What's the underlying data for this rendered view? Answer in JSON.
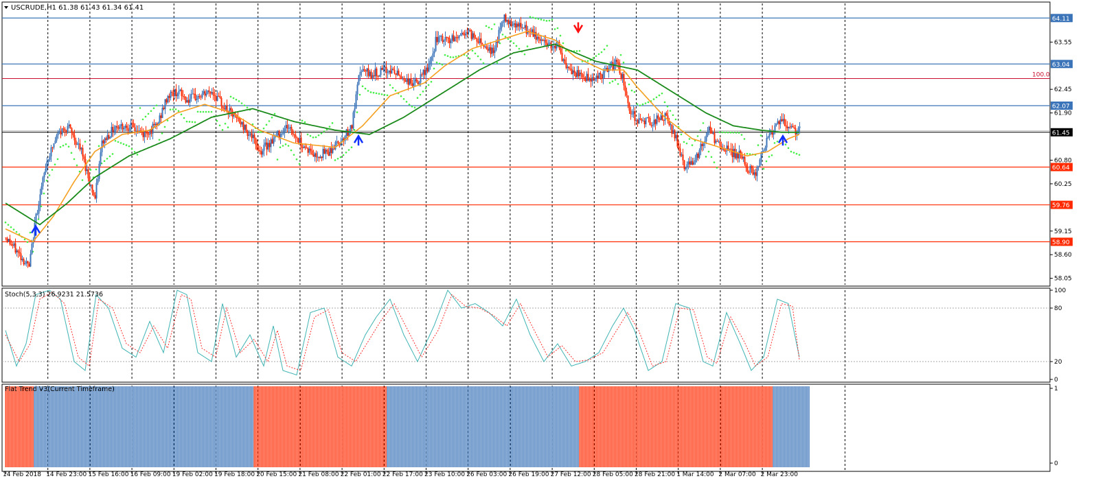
{
  "header": {
    "symbol_info": "USCRUDE,H1  61.38 61.43 61.34 61.41"
  },
  "price_axis": {
    "ticks": [
      "63.55",
      "62.45",
      "61.90",
      "60.80",
      "60.25",
      "59.15",
      "58.60",
      "58.05"
    ],
    "current_price": "61.45"
  },
  "horizontal_levels": [
    {
      "price": 64.11,
      "label": "64.11",
      "color": "#3b74b8"
    },
    {
      "price": 63.04,
      "label": "63.04",
      "color": "#3b74b8"
    },
    {
      "price": 62.07,
      "label": "62.07",
      "color": "#3b74b8"
    },
    {
      "price": 60.64,
      "label": "60.64",
      "color": "#ff2a00"
    },
    {
      "price": 59.76,
      "label": "59.76",
      "color": "#ff2a00"
    },
    {
      "price": 58.9,
      "label": "58.90",
      "color": "#ff2a00"
    }
  ],
  "fib_level": {
    "price": 62.7,
    "label": "100.0",
    "color": "#c8102e"
  },
  "stochastic": {
    "title": "Stoch(5,3,3) 26.9231 21.5736",
    "ticks": [
      "100",
      "80",
      "20",
      "0"
    ]
  },
  "flat_trend": {
    "title": "Flat Trend V3(Current Timeframe)",
    "ticks": [
      "1",
      "0"
    ]
  },
  "time_axis": {
    "labels": [
      "14 Feb 2018",
      "14 Feb 23:00",
      "15 Feb 16:00",
      "16 Feb 09:00",
      "19 Feb 02:00",
      "19 Feb 18:00",
      "20 Feb 15:00",
      "21 Feb 08:00",
      "22 Feb 01:00",
      "22 Feb 17:00",
      "23 Feb 10:00",
      "26 Feb 03:00",
      "26 Feb 19:00",
      "27 Feb 12:00",
      "28 Feb 05:00",
      "28 Feb 21:00",
      "1 Mar 14:00",
      "2 Mar 07:00",
      "2 Mar 23:00"
    ]
  },
  "colors": {
    "bull": "#3b74b8",
    "bear": "#ff2a00",
    "ma_fast": "#f5a020",
    "ma_slow": "#1a8a1a",
    "psar": "#44ee44",
    "stoch_main": "#3fb3b3",
    "stoch_signal": "#ff3030",
    "arrow_up": "#1030ff",
    "arrow_down": "#ff1010"
  },
  "chart_data": {
    "type": "candlestick",
    "symbol": "USCRUDE",
    "timeframe": "H1",
    "ylim": [
      57.9,
      64.45
    ],
    "anchors": [
      [
        0,
        59.0
      ],
      [
        10,
        58.6
      ],
      [
        17,
        58.3
      ],
      [
        22,
        59.5
      ],
      [
        30,
        60.8
      ],
      [
        38,
        61.4
      ],
      [
        45,
        61.6
      ],
      [
        55,
        61.0
      ],
      [
        62,
        60.2
      ],
      [
        65,
        59.9
      ],
      [
        70,
        61.2
      ],
      [
        80,
        61.6
      ],
      [
        90,
        61.6
      ],
      [
        100,
        61.4
      ],
      [
        110,
        61.6
      ],
      [
        118,
        62.3
      ],
      [
        125,
        62.4
      ],
      [
        132,
        62.2
      ],
      [
        142,
        62.3
      ],
      [
        150,
        62.4
      ],
      [
        160,
        62.0
      ],
      [
        170,
        61.7
      ],
      [
        178,
        61.4
      ],
      [
        185,
        61.0
      ],
      [
        195,
        61.3
      ],
      [
        205,
        61.6
      ],
      [
        215,
        61.2
      ],
      [
        225,
        60.9
      ],
      [
        235,
        61.0
      ],
      [
        245,
        61.3
      ],
      [
        252,
        61.6
      ],
      [
        258,
        62.9
      ],
      [
        265,
        62.8
      ],
      [
        280,
        62.9
      ],
      [
        295,
        62.6
      ],
      [
        300,
        62.6
      ],
      [
        310,
        63.1
      ],
      [
        313,
        63.6
      ],
      [
        325,
        63.6
      ],
      [
        335,
        63.8
      ],
      [
        345,
        63.6
      ],
      [
        355,
        63.3
      ],
      [
        362,
        64.1
      ],
      [
        370,
        64.0
      ],
      [
        385,
        63.7
      ],
      [
        395,
        63.5
      ],
      [
        402,
        63.5
      ],
      [
        408,
        62.9
      ],
      [
        415,
        62.8
      ],
      [
        425,
        62.7
      ],
      [
        435,
        62.8
      ],
      [
        445,
        63.1
      ],
      [
        450,
        62.6
      ],
      [
        455,
        61.9
      ],
      [
        462,
        61.7
      ],
      [
        470,
        61.7
      ],
      [
        480,
        61.8
      ],
      [
        488,
        61.3
      ],
      [
        495,
        60.6
      ],
      [
        505,
        61.0
      ],
      [
        512,
        61.5
      ],
      [
        520,
        61.1
      ],
      [
        535,
        60.9
      ],
      [
        540,
        60.6
      ],
      [
        546,
        60.5
      ],
      [
        555,
        61.4
      ],
      [
        565,
        61.7
      ],
      [
        572,
        61.5
      ],
      [
        578,
        61.5
      ]
    ],
    "ma_fast_anchors": [
      [
        0,
        59.2
      ],
      [
        20,
        58.9
      ],
      [
        35,
        59.5
      ],
      [
        50,
        60.3
      ],
      [
        65,
        61.0
      ],
      [
        85,
        61.4
      ],
      [
        105,
        61.5
      ],
      [
        125,
        61.9
      ],
      [
        145,
        62.1
      ],
      [
        165,
        61.9
      ],
      [
        185,
        61.5
      ],
      [
        210,
        61.2
      ],
      [
        240,
        61.1
      ],
      [
        260,
        61.6
      ],
      [
        280,
        62.3
      ],
      [
        305,
        62.6
      ],
      [
        320,
        63.0
      ],
      [
        340,
        63.4
      ],
      [
        360,
        63.6
      ],
      [
        380,
        63.8
      ],
      [
        400,
        63.6
      ],
      [
        415,
        63.2
      ],
      [
        435,
        62.9
      ],
      [
        450,
        62.9
      ],
      [
        460,
        62.5
      ],
      [
        480,
        61.8
      ],
      [
        500,
        61.3
      ],
      [
        520,
        61.1
      ],
      [
        540,
        60.9
      ],
      [
        555,
        61.0
      ],
      [
        570,
        61.3
      ],
      [
        578,
        61.4
      ]
    ],
    "ma_slow_anchors": [
      [
        0,
        59.8
      ],
      [
        25,
        59.3
      ],
      [
        45,
        59.8
      ],
      [
        65,
        60.4
      ],
      [
        90,
        60.9
      ],
      [
        120,
        61.3
      ],
      [
        150,
        61.8
      ],
      [
        180,
        62.0
      ],
      [
        210,
        61.7
      ],
      [
        240,
        61.5
      ],
      [
        265,
        61.4
      ],
      [
        290,
        61.8
      ],
      [
        320,
        62.4
      ],
      [
        345,
        62.9
      ],
      [
        370,
        63.3
      ],
      [
        400,
        63.5
      ],
      [
        430,
        63.1
      ],
      [
        460,
        62.9
      ],
      [
        490,
        62.3
      ],
      [
        510,
        61.9
      ],
      [
        530,
        61.6
      ],
      [
        550,
        61.5
      ],
      [
        565,
        61.45
      ],
      [
        578,
        61.45
      ]
    ],
    "buy_arrows": [
      {
        "bar": 22,
        "price": 59.2
      },
      {
        "bar": 257,
        "price": 61.3
      },
      {
        "bar": 566,
        "price": 61.3
      }
    ],
    "sell_arrows": [
      {
        "bar": 417,
        "price": 63.85
      }
    ],
    "stochastic": {
      "k": 26.9231,
      "d": 21.5736,
      "ylim": [
        0,
        100
      ],
      "levels": [
        20,
        80
      ],
      "k_anchors": [
        [
          0,
          55
        ],
        [
          8,
          15
        ],
        [
          15,
          40
        ],
        [
          22,
          95
        ],
        [
          32,
          100
        ],
        [
          40,
          90
        ],
        [
          50,
          20
        ],
        [
          58,
          10
        ],
        [
          66,
          95
        ],
        [
          75,
          80
        ],
        [
          85,
          35
        ],
        [
          95,
          25
        ],
        [
          105,
          65
        ],
        [
          115,
          30
        ],
        [
          125,
          100
        ],
        [
          132,
          95
        ],
        [
          140,
          30
        ],
        [
          150,
          20
        ],
        [
          158,
          85
        ],
        [
          168,
          25
        ],
        [
          178,
          50
        ],
        [
          188,
          15
        ],
        [
          195,
          60
        ],
        [
          202,
          10
        ],
        [
          212,
          5
        ],
        [
          222,
          75
        ],
        [
          232,
          80
        ],
        [
          242,
          25
        ],
        [
          252,
          15
        ],
        [
          262,
          50
        ],
        [
          270,
          70
        ],
        [
          280,
          90
        ],
        [
          290,
          50
        ],
        [
          300,
          20
        ],
        [
          312,
          60
        ],
        [
          322,
          100
        ],
        [
          332,
          80
        ],
        [
          342,
          85
        ],
        [
          352,
          75
        ],
        [
          362,
          60
        ],
        [
          372,
          90
        ],
        [
          382,
          50
        ],
        [
          392,
          20
        ],
        [
          402,
          40
        ],
        [
          412,
          15
        ],
        [
          422,
          20
        ],
        [
          432,
          30
        ],
        [
          442,
          60
        ],
        [
          450,
          80
        ],
        [
          458,
          55
        ],
        [
          468,
          10
        ],
        [
          478,
          20
        ],
        [
          488,
          85
        ],
        [
          498,
          80
        ],
        [
          508,
          20
        ],
        [
          515,
          15
        ],
        [
          525,
          75
        ],
        [
          535,
          40
        ],
        [
          543,
          10
        ],
        [
          552,
          25
        ],
        [
          562,
          90
        ],
        [
          570,
          85
        ],
        [
          578,
          25
        ]
      ],
      "d_anchors": [
        [
          0,
          50
        ],
        [
          10,
          20
        ],
        [
          18,
          40
        ],
        [
          25,
          90
        ],
        [
          34,
          98
        ],
        [
          43,
          85
        ],
        [
          53,
          25
        ],
        [
          61,
          15
        ],
        [
          68,
          90
        ],
        [
          78,
          80
        ],
        [
          88,
          40
        ],
        [
          98,
          30
        ],
        [
          108,
          60
        ],
        [
          118,
          35
        ],
        [
          128,
          95
        ],
        [
          135,
          90
        ],
        [
          143,
          35
        ],
        [
          153,
          25
        ],
        [
          161,
          80
        ],
        [
          171,
          30
        ],
        [
          181,
          45
        ],
        [
          191,
          20
        ],
        [
          198,
          55
        ],
        [
          205,
          15
        ],
        [
          215,
          10
        ],
        [
          225,
          70
        ],
        [
          235,
          78
        ],
        [
          245,
          30
        ],
        [
          255,
          20
        ],
        [
          265,
          45
        ],
        [
          273,
          65
        ],
        [
          283,
          85
        ],
        [
          293,
          55
        ],
        [
          303,
          25
        ],
        [
          315,
          55
        ],
        [
          325,
          95
        ],
        [
          335,
          82
        ],
        [
          345,
          80
        ],
        [
          355,
          72
        ],
        [
          365,
          60
        ],
        [
          375,
          85
        ],
        [
          385,
          55
        ],
        [
          395,
          25
        ],
        [
          405,
          38
        ],
        [
          415,
          20
        ],
        [
          425,
          22
        ],
        [
          435,
          30
        ],
        [
          445,
          55
        ],
        [
          453,
          75
        ],
        [
          461,
          55
        ],
        [
          471,
          15
        ],
        [
          481,
          20
        ],
        [
          491,
          80
        ],
        [
          501,
          78
        ],
        [
          511,
          25
        ],
        [
          518,
          18
        ],
        [
          528,
          70
        ],
        [
          538,
          42
        ],
        [
          546,
          15
        ],
        [
          555,
          25
        ],
        [
          565,
          85
        ],
        [
          573,
          82
        ],
        [
          578,
          22
        ]
      ]
    },
    "flat_trend_segments": [
      {
        "start": 0,
        "end": 20,
        "trend": "down"
      },
      {
        "start": 21,
        "end": 180,
        "trend": "up"
      },
      {
        "start": 181,
        "end": 277,
        "trend": "down"
      },
      {
        "start": 278,
        "end": 417,
        "trend": "up"
      },
      {
        "start": 418,
        "end": 558,
        "trend": "down"
      },
      {
        "start": 559,
        "end": 585,
        "trend": "up"
      }
    ]
  }
}
